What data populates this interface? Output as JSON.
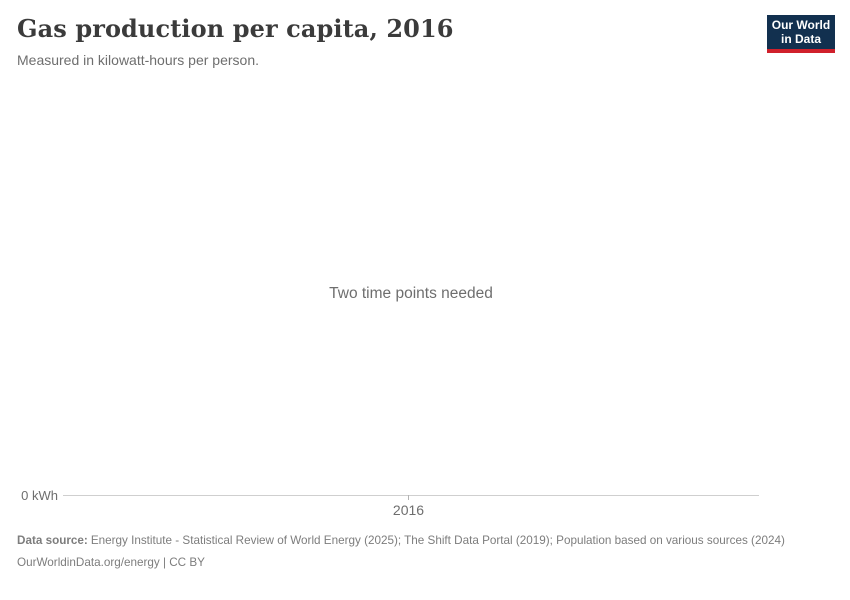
{
  "header": {
    "title": "Gas production per capita, 2016",
    "subtitle": "Measured in kilowatt-hours per person.",
    "logo": {
      "line1": "Our World",
      "line2": "in Data"
    }
  },
  "chart": {
    "empty_message": "Two time points needed",
    "y_axis_label": "0 kWh",
    "x_tick_label": "2016"
  },
  "chart_data": {
    "type": "line",
    "title": "Gas production per capita, 2016",
    "subtitle": "Measured in kilowatt-hours per person.",
    "x_axis_ticks": [
      "2016"
    ],
    "y_axis_ticks": [
      "0 kWh"
    ],
    "series": [],
    "annotations": [
      "Two time points needed"
    ],
    "grid": false,
    "legend_position": "none",
    "note": "Empty chart state: axis rendered with single year tick and zero baseline, no data series plotted"
  },
  "footer": {
    "data_source_label": "Data source:",
    "data_source_text": "Energy Institute - Statistical Review of World Energy (2025); The Shift Data Portal (2019); Population based on various sources (2024)",
    "citation": "OurWorldinData.org/energy | CC BY"
  },
  "colors": {
    "background": "#ffffff",
    "title_text": "#3b3b3b",
    "muted_text": "#6e6e6e",
    "footer_text": "#7d7d7d",
    "axis_line": "#cfcfcf",
    "logo_navy": "#12304f",
    "logo_red": "#d0202b"
  }
}
